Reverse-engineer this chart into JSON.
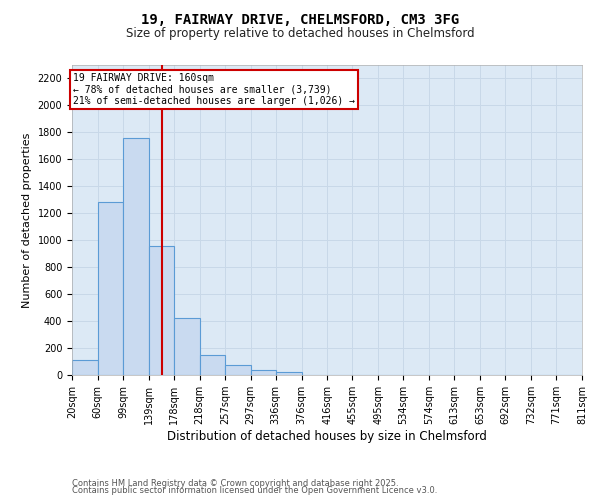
{
  "title_line1": "19, FAIRWAY DRIVE, CHELMSFORD, CM3 3FG",
  "title_line2": "Size of property relative to detached houses in Chelmsford",
  "xlabel": "Distribution of detached houses by size in Chelmsford",
  "ylabel": "Number of detached properties",
  "footnote_line1": "Contains HM Land Registry data © Crown copyright and database right 2025.",
  "footnote_line2": "Contains public sector information licensed under the Open Government Licence v3.0.",
  "annotation_line1": "19 FAIRWAY DRIVE: 160sqm",
  "annotation_line2": "← 78% of detached houses are smaller (3,739)",
  "annotation_line3": "21% of semi-detached houses are larger (1,026) →",
  "property_size": 160,
  "bins": [
    20,
    60,
    99,
    139,
    178,
    218,
    257,
    297,
    336,
    376,
    416,
    455,
    495,
    534,
    574,
    613,
    653,
    692,
    732,
    771,
    811
  ],
  "bar_heights": [
    110,
    1280,
    1760,
    960,
    420,
    150,
    75,
    40,
    20,
    0,
    0,
    0,
    0,
    0,
    0,
    0,
    0,
    0,
    0,
    0
  ],
  "bar_color": "#c9daf0",
  "bar_edge_color": "#5b9bd5",
  "red_line_color": "#cc0000",
  "grid_color": "#c8d8e8",
  "background_color": "#dce9f5",
  "annotation_box_color": "#cc0000",
  "ylim": [
    0,
    2300
  ],
  "yticks": [
    0,
    200,
    400,
    600,
    800,
    1000,
    1200,
    1400,
    1600,
    1800,
    2000,
    2200
  ],
  "title1_fontsize": 10,
  "title2_fontsize": 8.5,
  "ylabel_fontsize": 8,
  "xlabel_fontsize": 8.5,
  "tick_fontsize": 7,
  "ann_fontsize": 7,
  "footnote_fontsize": 6
}
